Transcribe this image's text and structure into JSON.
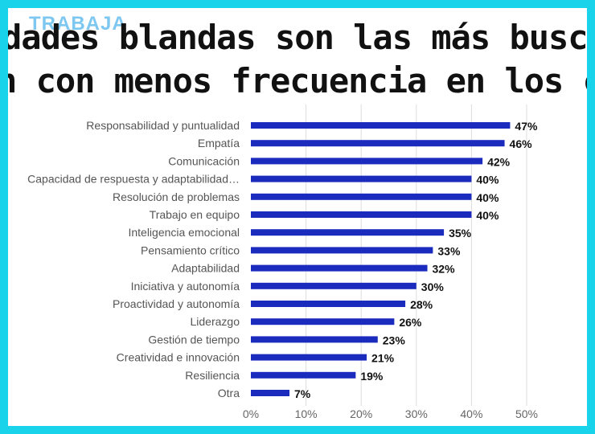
{
  "header": {
    "logo_text": "TRABAJA",
    "title_line_1": "dades blandas son las más buscadas y la",
    "title_line_2": "n con menos frecuencia en los candidat"
  },
  "colors": {
    "frame": "#19d3ea",
    "bar": "#1b2bbd",
    "grid": "#dddddd"
  },
  "chart_data": {
    "type": "bar",
    "orientation": "horizontal",
    "categories": [
      "Responsabilidad y puntualidad",
      "Empatía",
      "Comunicación",
      "Capacidad de respuesta y adaptabilidad…",
      "Resolución de problemas",
      "Trabajo en equipo",
      "Inteligencia emocional",
      "Pensamiento crítico",
      "Adaptabilidad",
      "Iniciativa y autonomía",
      "Proactividad y autonomía",
      "Liderazgo",
      "Gestión de tiempo",
      "Creatividad e innovación",
      "Resiliencia",
      "Otra"
    ],
    "values": [
      47,
      46,
      42,
      40,
      40,
      40,
      35,
      33,
      32,
      30,
      28,
      26,
      23,
      21,
      19,
      7
    ],
    "value_labels": [
      "47%",
      "46%",
      "42%",
      "40%",
      "40%",
      "40%",
      "35%",
      "33%",
      "32%",
      "30%",
      "28%",
      "26%",
      "23%",
      "21%",
      "19%",
      "7%"
    ],
    "xlim": [
      0,
      50
    ],
    "x_ticks": [
      "0%",
      "10%",
      "20%",
      "30%",
      "40%",
      "50%"
    ],
    "grid": "vertical"
  }
}
